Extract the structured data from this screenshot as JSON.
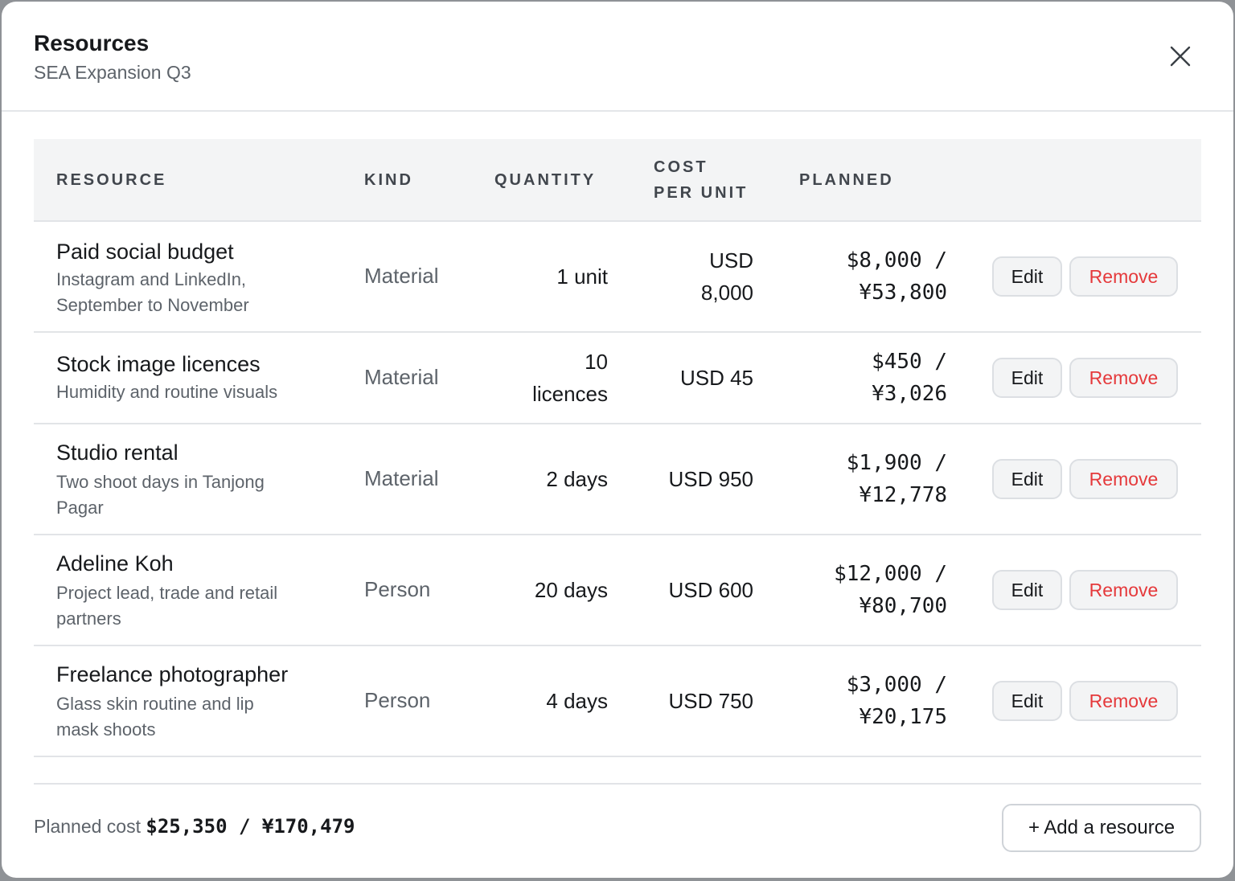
{
  "modal": {
    "title": "Resources",
    "subtitle": "SEA Expansion Q3",
    "close_icon": "close-icon"
  },
  "table": {
    "headers": {
      "resource": "RESOURCE",
      "kind": "KIND",
      "quantity": "QUANTITY",
      "cost_line1": "COST",
      "cost_line2": "PER UNIT",
      "planned": "PLANNED"
    },
    "rows": [
      {
        "name": "Paid social budget",
        "desc_line1": "Instagram and LinkedIn,",
        "desc_line2": "September to November",
        "kind": "Material",
        "qty_line1": "1 unit",
        "qty_line2": "",
        "cpu_line1": "USD",
        "cpu_line2": "8,000",
        "planned_line1": "$8,000 /",
        "planned_line2": "¥53,800",
        "edit": "Edit",
        "remove": "Remove"
      },
      {
        "name": "Stock image licences",
        "desc_line1": "Humidity and routine visuals",
        "desc_line2": "",
        "kind": "Material",
        "qty_line1": "10",
        "qty_line2": "licences",
        "cpu_line1": "USD 45",
        "cpu_line2": "",
        "planned_line1": "$450 /",
        "planned_line2": "¥3,026",
        "edit": "Edit",
        "remove": "Remove"
      },
      {
        "name": "Studio rental",
        "desc_line1": "Two shoot days in Tanjong",
        "desc_line2": "Pagar",
        "kind": "Material",
        "qty_line1": "2 days",
        "qty_line2": "",
        "cpu_line1": "USD 950",
        "cpu_line2": "",
        "planned_line1": "$1,900 /",
        "planned_line2": "¥12,778",
        "edit": "Edit",
        "remove": "Remove"
      },
      {
        "name": "Adeline Koh",
        "desc_line1": "Project lead, trade and retail",
        "desc_line2": "partners",
        "kind": "Person",
        "qty_line1": "20 days",
        "qty_line2": "",
        "cpu_line1": "USD 600",
        "cpu_line2": "",
        "planned_line1": "$12,000 /",
        "planned_line2": "¥80,700",
        "edit": "Edit",
        "remove": "Remove"
      },
      {
        "name": "Freelance photographer",
        "desc_line1": "Glass skin routine and lip",
        "desc_line2": "mask shoots",
        "kind": "Person",
        "qty_line1": "4 days",
        "qty_line2": "",
        "cpu_line1": "USD 750",
        "cpu_line2": "",
        "planned_line1": "$3,000 /",
        "planned_line2": "¥20,175",
        "edit": "Edit",
        "remove": "Remove"
      }
    ]
  },
  "footer": {
    "label": "Planned cost",
    "total": "$25,350 / ¥170,479",
    "add_button": "+ Add a resource"
  },
  "colors": {
    "remove_text": "#e5393b",
    "header_bg": "#f3f4f5",
    "divider": "#e2e4e7"
  }
}
